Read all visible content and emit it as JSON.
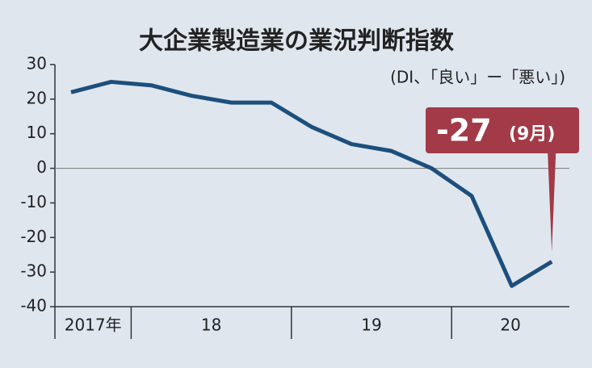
{
  "chart_data": {
    "type": "line",
    "title": "大企業製造業の業況判断指数",
    "subtitle": "(DI、「良い」ー「悪い」)",
    "categories": [
      null,
      null,
      null,
      null,
      null,
      null,
      null,
      null,
      null,
      null,
      null,
      null,
      null
    ],
    "x_groups": [
      {
        "label": "2017年",
        "count": 2
      },
      {
        "label": "18",
        "count": 4
      },
      {
        "label": "19",
        "count": 4
      },
      {
        "label": "20",
        "count": 3
      }
    ],
    "series": [
      {
        "name": "DI",
        "color": "#1d4f7c",
        "values": [
          22,
          25,
          24,
          21,
          19,
          19,
          12,
          7,
          5,
          0,
          -8,
          -34,
          -27
        ]
      }
    ],
    "ylim": [
      -40,
      30
    ],
    "yticks": [
      30,
      20,
      10,
      0,
      -10,
      -20,
      -30,
      -40
    ],
    "annotation": {
      "value": "-27",
      "note": "(9月)",
      "color": "#a23a48"
    }
  }
}
